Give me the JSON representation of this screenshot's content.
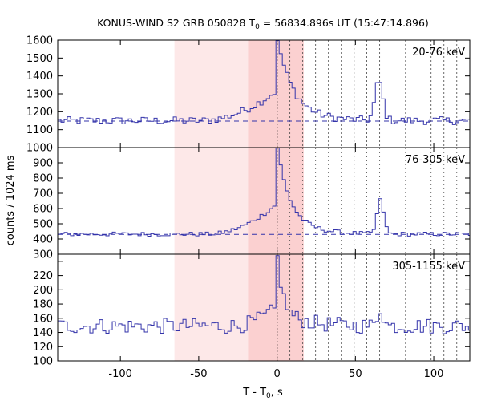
{
  "chart_data": {
    "type": "line",
    "title": "KONUS-WIND S2 GRB 050828 T",
    "title_sub": "0",
    "title_rest": " = 56834.896s UT (15:47:14.896)",
    "xlabel": "T - T",
    "xlabel_sub": "0",
    "xlabel_rest": ", s",
    "ylabel": "counts / 1024 ms",
    "xlim": [
      -140,
      123
    ],
    "x_ticks": [
      -100,
      -50,
      0,
      50,
      100
    ],
    "x_tick_labels": [
      "-100",
      "-50",
      "0",
      "50",
      "100"
    ],
    "grid": false,
    "background_colors": {
      "light_shade": "#fde8e8",
      "dark_shade": "#fbd0d0"
    },
    "line_color": "#3333aa",
    "shaded_intervals": [
      {
        "from": -65.5,
        "to": -18.5,
        "shade": "light"
      },
      {
        "from": -18.5,
        "to": 17,
        "shade": "dark"
      }
    ],
    "trigger_line_x": 0,
    "dotted_lines_x": [
      8.2,
      16.4,
      24.6,
      32.8,
      41,
      49.2,
      57.3,
      65.5,
      82,
      98.3,
      106.5,
      114.7
    ],
    "panels": [
      {
        "band": "20-76 keV",
        "ylim": [
          1000,
          1600
        ],
        "y_ticks": [
          1000,
          1100,
          1200,
          1300,
          1400,
          1500,
          1600
        ],
        "y_tick_labels": [
          "1000",
          "1100",
          "1200",
          "1300",
          "1400",
          "1500",
          "1600"
        ],
        "background_level": 1148,
        "shape": {
          "base": 1150,
          "rise": 170,
          "rise_start": -50,
          "peak1": 300,
          "decay1": 9,
          "peak2": 220,
          "t2": 65,
          "w2": 3.5,
          "noise": 22
        }
      },
      {
        "band": "76-305 keV",
        "ylim": [
          300,
          1000
        ],
        "y_ticks": [
          300,
          400,
          500,
          600,
          700,
          800,
          900,
          1000
        ],
        "y_tick_labels": [
          "300",
          "400",
          "500",
          "600",
          "700",
          "800",
          "900",
          "1000"
        ],
        "background_level": 430,
        "shape": {
          "base": 432,
          "rise": 200,
          "rise_start": -45,
          "peak1": 390,
          "decay1": 7,
          "peak2": 220,
          "t2": 66,
          "w2": 3,
          "noise": 14
        }
      },
      {
        "band": "305-1155 keV",
        "ylim": [
          100,
          250
        ],
        "y_ticks": [
          100,
          120,
          140,
          160,
          180,
          200,
          220,
          240
        ],
        "y_tick_labels": [
          "100",
          "120",
          "140",
          "160",
          "180",
          "200",
          "220",
          "240"
        ],
        "background_level": 149,
        "shape": {
          "base": 149,
          "rise": 25,
          "rise_start": -30,
          "peak1": 90,
          "decay1": 3,
          "peak2": 25,
          "t2": 66,
          "w2": 2.5,
          "noise": 11
        }
      }
    ]
  }
}
